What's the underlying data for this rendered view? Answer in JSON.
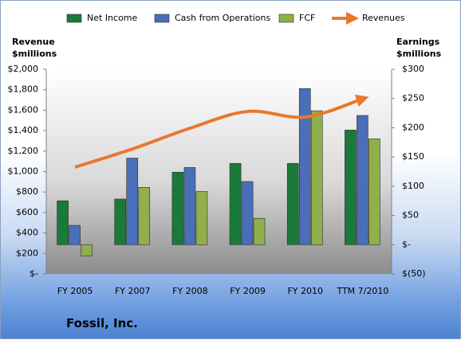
{
  "chart_data": {
    "type": "bar",
    "title": "Fossil, Inc.",
    "ylabel": "Revenue $millions",
    "y2label": "Earnings $millions",
    "categories": [
      "FY 2005",
      "FY 2007",
      "FY 2008",
      "FY 2009",
      "FY 2010",
      "TTM 7/2010"
    ],
    "series": [
      {
        "name": "Net Income",
        "color": "#1a7a3a",
        "type": "bar",
        "axis": "y2",
        "values": [
          75,
          78,
          124,
          139,
          139,
          196
        ]
      },
      {
        "name": "Cash from Operations",
        "color": "#4a6fb8",
        "type": "bar",
        "axis": "y2",
        "values": [
          33,
          148,
          132,
          108,
          267,
          221
        ]
      },
      {
        "name": "FCF",
        "color": "#8fb04a",
        "type": "bar",
        "axis": "y2",
        "values": [
          -19,
          98,
          91,
          45,
          229,
          181
        ]
      },
      {
        "name": "Revenues",
        "color": "#e8782e",
        "type": "line",
        "axis": "y",
        "values": [
          1043,
          1222,
          1424,
          1588,
          1533,
          1712
        ]
      }
    ],
    "ylim": [
      0,
      2000
    ],
    "yticks": [
      {
        "value": 0,
        "label": "$-"
      },
      {
        "value": 200,
        "label": "$200"
      },
      {
        "value": 400,
        "label": "$400"
      },
      {
        "value": 600,
        "label": "$600"
      },
      {
        "value": 800,
        "label": "$800"
      },
      {
        "value": 1000,
        "label": "$1,000"
      },
      {
        "value": 1200,
        "label": "$1,200"
      },
      {
        "value": 1400,
        "label": "$1,400"
      },
      {
        "value": 1600,
        "label": "$1,600"
      },
      {
        "value": 1800,
        "label": "$1,800"
      },
      {
        "value": 2000,
        "label": "$2,000"
      }
    ],
    "y2lim": [
      -50,
      300
    ],
    "y2ticks": [
      {
        "value": -50,
        "label": "$(50)"
      },
      {
        "value": 0,
        "label": "$-"
      },
      {
        "value": 50,
        "label": "$50"
      },
      {
        "value": 100,
        "label": "$100"
      },
      {
        "value": 150,
        "label": "$150"
      },
      {
        "value": 200,
        "label": "$200"
      },
      {
        "value": 250,
        "label": "$250"
      },
      {
        "value": 300,
        "label": "$300"
      }
    ],
    "legend": "top"
  }
}
